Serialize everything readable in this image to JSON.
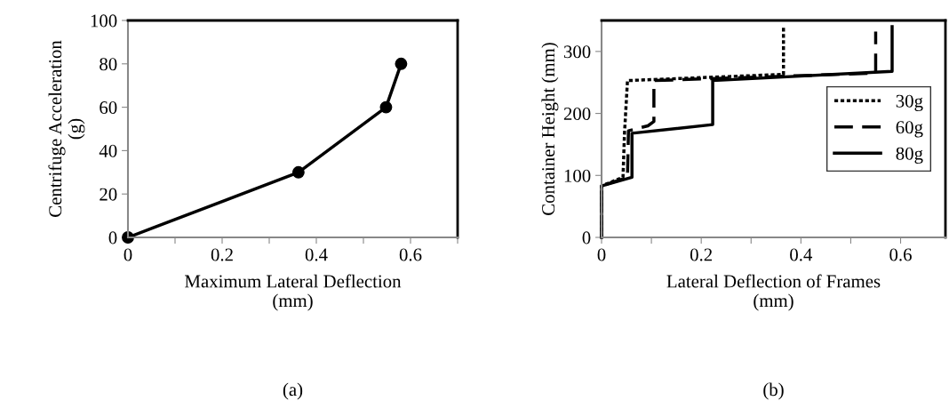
{
  "chart_data": [
    {
      "type": "line",
      "xlabel": "Maximum Lateral Deflection\n(mm)",
      "ylabel": "Centrifuge Acceleration\n(g)",
      "annotations": [
        "(a)"
      ],
      "xlim": [
        0,
        0.7
      ],
      "xticks": [
        0,
        {
          "value": 0.1,
          "label": null
        },
        0.2,
        {
          "value": 0.3,
          "label": null
        },
        0.4,
        {
          "value": 0.5,
          "label": null
        },
        0.6,
        {
          "value": 0.7,
          "label": null
        }
      ],
      "ylim": [
        0,
        100
      ],
      "yticks": [
        0,
        20,
        40,
        60,
        80,
        100
      ],
      "grid": false,
      "legend": false,
      "marker": "circle",
      "line_style": "solid",
      "series": [
        {
          "color": "#000000",
          "x": [
            0,
            0.362,
            0.548,
            0.58
          ],
          "values": [
            0,
            30,
            60,
            80
          ]
        }
      ]
    },
    {
      "type": "line",
      "xlabel": "Lateral Deflection of Frames\n(mm)",
      "ylabel": "Container Height (mm)",
      "annotations": [
        "(b)"
      ],
      "xlim": [
        0,
        0.69
      ],
      "xticks": [
        0,
        {
          "value": 0.1,
          "label": null
        },
        0.2,
        {
          "value": 0.3,
          "label": null
        },
        0.4,
        {
          "value": 0.5,
          "label": null
        },
        0.6
      ],
      "ylim": [
        0,
        350
      ],
      "yticks": [
        0,
        100,
        200,
        300
      ],
      "grid": false,
      "legend": "center right",
      "marker": "none",
      "series": [
        {
          "name": "30g",
          "color": "#000000",
          "line_style": "dotted",
          "x": [
            0,
            0,
            0.043,
            0.046,
            0.052,
            0.365,
            0.365
          ],
          "values": [
            0,
            83,
            97,
            168,
            253,
            263,
            340
          ]
        },
        {
          "name": "60g",
          "color": "#000000",
          "line_style": "dashed",
          "x": [
            0,
            0,
            0.052,
            0.054,
            0.093,
            0.105,
            0.105,
            0.55,
            0.55
          ],
          "values": [
            0,
            83,
            97,
            172,
            180,
            187,
            253,
            265,
            332
          ]
        },
        {
          "name": "80g",
          "color": "#000000",
          "line_style": "solid",
          "x": [
            0,
            0,
            0.061,
            0.061,
            0.223,
            0.223,
            0.583,
            0.583
          ],
          "values": [
            0,
            83,
            97,
            168,
            182,
            253,
            268,
            340
          ]
        }
      ]
    }
  ]
}
